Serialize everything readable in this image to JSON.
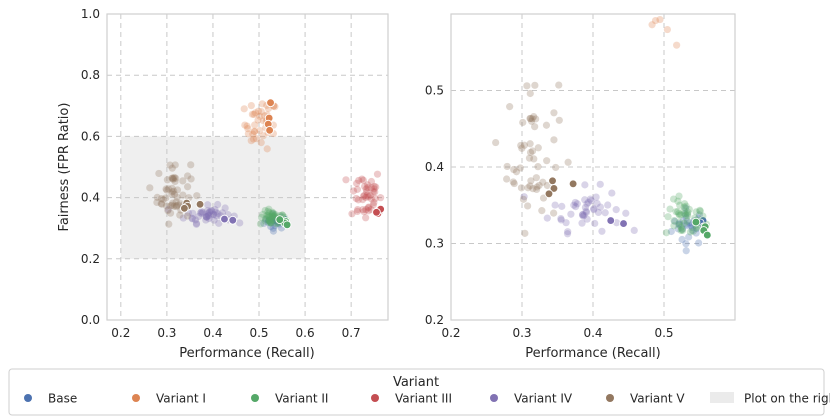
{
  "chart_data": [
    {
      "type": "scatter",
      "panel": "left",
      "xlabel": "Performance (Recall)",
      "ylabel": "Fairness (FPR Ratio)",
      "xlim": [
        0.17,
        0.78
      ],
      "ylim": [
        0.0,
        1.0
      ],
      "xticks": [
        0.2,
        0.3,
        0.4,
        0.5,
        0.6,
        0.7
      ],
      "yticks": [
        0.0,
        0.2,
        0.4,
        0.6,
        0.8,
        1.0
      ],
      "xtick_labels": [
        "0.2",
        "0.3",
        "0.4",
        "0.5",
        "0.6",
        "0.7"
      ],
      "ytick_labels": [
        "0.0",
        "0.2",
        "0.4",
        "0.6",
        "0.8",
        "1.0"
      ],
      "grid": true,
      "shaded_region": {
        "x": [
          0.2,
          0.6
        ],
        "y": [
          0.2,
          0.6
        ],
        "label": "Plot on the right"
      }
    },
    {
      "type": "scatter",
      "panel": "right",
      "xlabel": "Performance (Recall)",
      "ylabel": "",
      "xlim": [
        0.2,
        0.6
      ],
      "ylim": [
        0.2,
        0.6
      ],
      "xticks": [
        0.2,
        0.3,
        0.4,
        0.5
      ],
      "yticks": [
        0.2,
        0.3,
        0.4,
        0.5
      ],
      "xtick_labels": [
        "0.2",
        "0.3",
        "0.4",
        "0.5"
      ],
      "ytick_labels": [
        "0.2",
        "0.3",
        "0.4",
        "0.5"
      ],
      "grid": true
    }
  ],
  "series": [
    {
      "name": "Base",
      "color": "#4c72b0",
      "clusters": [
        {
          "cx": 0.535,
          "cy": 0.322,
          "sx": 0.012,
          "sy": 0.012,
          "n": 28
        }
      ],
      "highlight": [
        [
          0.555,
          0.33
        ],
        [
          0.551,
          0.327
        ],
        [
          0.556,
          0.322
        ]
      ]
    },
    {
      "name": "Variant I",
      "color": "#dd8452",
      "clusters": [
        {
          "cx": 0.505,
          "cy": 0.64,
          "sx": 0.018,
          "sy": 0.04,
          "n": 40
        }
      ],
      "highlight": [
        [
          0.525,
          0.71
        ],
        [
          0.522,
          0.66
        ],
        [
          0.52,
          0.64
        ],
        [
          0.523,
          0.62
        ]
      ]
    },
    {
      "name": "Variant II",
      "color": "#55a868",
      "clusters": [
        {
          "cx": 0.53,
          "cy": 0.332,
          "sx": 0.014,
          "sy": 0.012,
          "n": 45
        }
      ],
      "highlight": [
        [
          0.558,
          0.322
        ],
        [
          0.556,
          0.317
        ],
        [
          0.561,
          0.311
        ],
        [
          0.545,
          0.328
        ]
      ]
    },
    {
      "name": "Variant III",
      "color": "#c44e52",
      "clusters": [
        {
          "cx": 0.73,
          "cy": 0.41,
          "sx": 0.018,
          "sy": 0.045,
          "n": 45
        }
      ],
      "highlight": [
        [
          0.762,
          0.355
        ],
        [
          0.758,
          0.348
        ],
        [
          0.764,
          0.362
        ],
        [
          0.755,
          0.352
        ]
      ]
    },
    {
      "name": "Variant IV",
      "color": "#8172b3",
      "clusters": [
        {
          "cx": 0.39,
          "cy": 0.345,
          "sx": 0.025,
          "sy": 0.014,
          "n": 45
        }
      ],
      "highlight": [
        [
          0.443,
          0.326
        ],
        [
          0.425,
          0.33
        ]
      ]
    },
    {
      "name": "Variant V",
      "color": "#937860",
      "clusters": [
        {
          "cx": 0.315,
          "cy": 0.42,
          "sx": 0.018,
          "sy": 0.05,
          "n": 55
        }
      ],
      "highlight": [
        [
          0.343,
          0.382
        ],
        [
          0.345,
          0.372
        ],
        [
          0.372,
          0.378
        ],
        [
          0.338,
          0.365
        ]
      ]
    }
  ],
  "legend": {
    "title": "Variant",
    "items": [
      {
        "label": "Base",
        "color": "#4c72b0",
        "kind": "marker"
      },
      {
        "label": "Variant I",
        "color": "#dd8452",
        "kind": "marker"
      },
      {
        "label": "Variant II",
        "color": "#55a868",
        "kind": "marker"
      },
      {
        "label": "Variant III",
        "color": "#c44e52",
        "kind": "marker"
      },
      {
        "label": "Variant IV",
        "color": "#8172b3",
        "kind": "marker"
      },
      {
        "label": "Variant V",
        "color": "#937860",
        "kind": "marker"
      },
      {
        "label": "Plot on the right",
        "color": "#ebebeb",
        "kind": "patch"
      }
    ]
  }
}
